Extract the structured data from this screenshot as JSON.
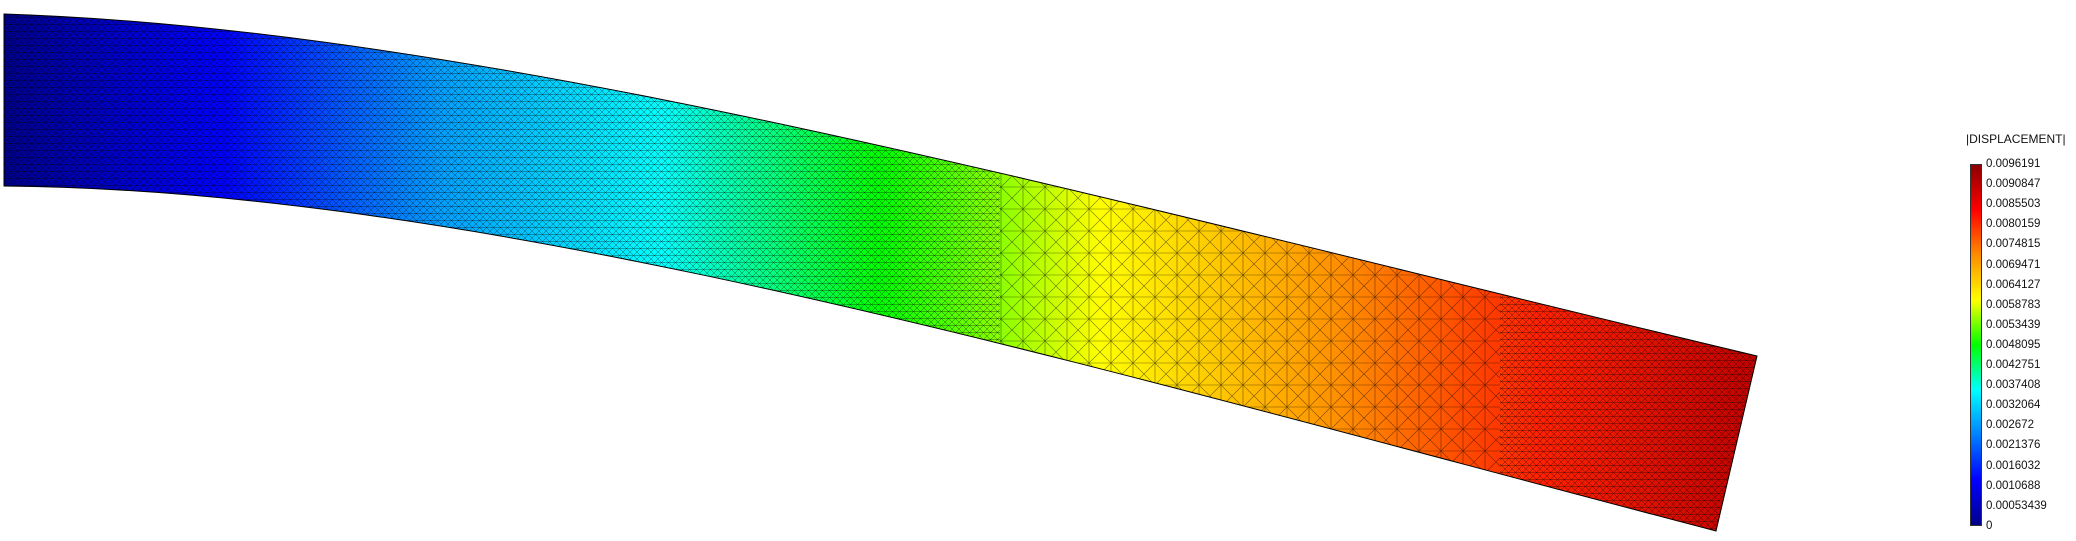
{
  "legend": {
    "title": "|DISPLACEMENT|",
    "labels": [
      "0.0096191",
      "0.0090847",
      "0.0085503",
      "0.0080159",
      "0.0074815",
      "0.0069471",
      "0.0064127",
      "0.0058783",
      "0.0053439",
      "0.0048095",
      "0.0042751",
      "0.0037408",
      "0.0032064",
      "0.002672",
      "0.0021376",
      "0.0016032",
      "0.0010688",
      "0.00053439",
      "0"
    ],
    "colors": [
      "#8b0000",
      "#ff0000",
      "#ff8c00",
      "#ffff00",
      "#00ff00",
      "#00ffff",
      "#0080ff",
      "#0000ff",
      "#00008b"
    ]
  },
  "beam": {
    "description_values": {
      "min_displacement": 0,
      "max_displacement": 0.0096191
    },
    "colors": [
      "#00008b",
      "#0000ff",
      "#00a0ff",
      "#00ffff",
      "#00ff00",
      "#ffff00",
      "#ff9900",
      "#ff2200",
      "#c00000"
    ],
    "mesh_color": "#000000"
  }
}
